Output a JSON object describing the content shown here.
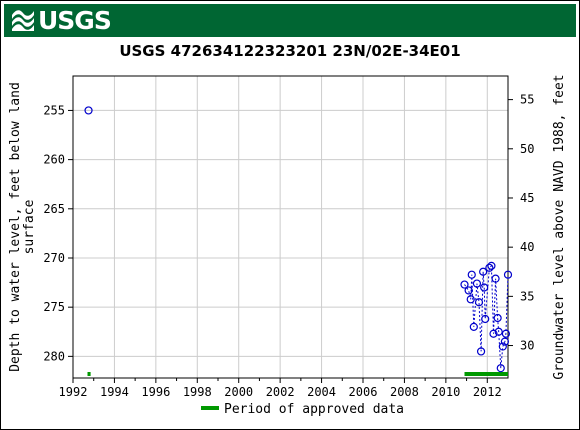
{
  "header": {
    "logo_text": "USGS",
    "logo_icon": "usgs-wave-icon"
  },
  "colors": {
    "banner": "#006633",
    "points": "#0000cc",
    "approved": "#009900",
    "grid": "#cccccc"
  },
  "chart_data": {
    "type": "scatter",
    "title": "USGS 472634122323201 23N/02E-34E01",
    "xlabel": "",
    "ylabel_left": "Depth to water level, feet below land surface",
    "ylabel_left_lines": [
      "Depth to water level, feet below land",
      "surface"
    ],
    "ylabel_right": "Groundwater level above NAVD 1988, feet",
    "xlim": [
      1992,
      2013
    ],
    "ylim_left": [
      282.2,
      251.5
    ],
    "ylim_right": [
      26.7,
      57.4
    ],
    "x_ticks": [
      "1992",
      "1994",
      "1996",
      "1998",
      "2000",
      "2002",
      "2004",
      "2006",
      "2008",
      "2010",
      "2012"
    ],
    "y_ticks_left": [
      "255",
      "260",
      "265",
      "270",
      "275",
      "280"
    ],
    "y_ticks_right": [
      "55",
      "50",
      "45",
      "40",
      "35",
      "30"
    ],
    "grid": true,
    "legend": {
      "placement": "bottom",
      "label": "Period of approved data"
    },
    "approved_periods": [
      [
        1992.7,
        1992.85
      ],
      [
        2010.9,
        2013.0
      ]
    ],
    "series": [
      {
        "name": "",
        "points": [
          [
            1992.75,
            255.0
          ],
          [
            2010.9,
            272.7
          ],
          [
            2011.1,
            273.3
          ],
          [
            2011.2,
            274.2
          ],
          [
            2011.25,
            271.7
          ],
          [
            2011.35,
            277.0
          ],
          [
            2011.5,
            272.6
          ],
          [
            2011.6,
            274.5
          ],
          [
            2011.7,
            279.5
          ],
          [
            2011.8,
            271.4
          ],
          [
            2011.85,
            273.0
          ],
          [
            2011.9,
            276.2
          ],
          [
            2012.1,
            271.0
          ],
          [
            2012.2,
            270.8
          ],
          [
            2012.3,
            277.7
          ],
          [
            2012.4,
            272.1
          ],
          [
            2012.5,
            276.1
          ],
          [
            2012.55,
            277.5
          ],
          [
            2012.65,
            281.2
          ],
          [
            2012.75,
            279.0
          ],
          [
            2012.85,
            278.5
          ],
          [
            2012.9,
            277.7
          ],
          [
            2013.0,
            271.7
          ]
        ]
      }
    ]
  }
}
